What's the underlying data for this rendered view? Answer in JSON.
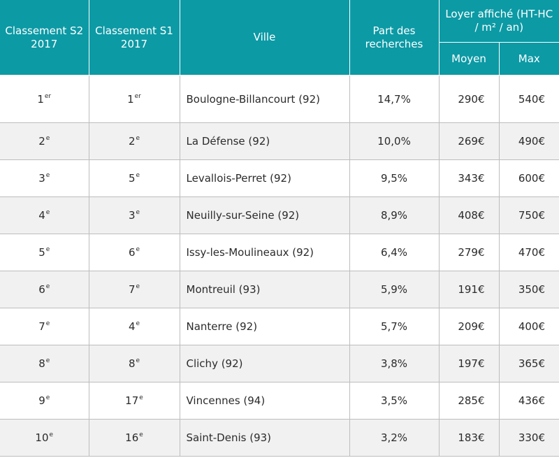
{
  "headers": {
    "classement_s2": "Classement S2 2017",
    "classement_s1": "Classement S1 2017",
    "ville": "Ville",
    "part_recherches": "Part des recherches",
    "loyer": "Loyer affiché (HT-HC / m² / an)",
    "moyen": "Moyen",
    "max": "Max"
  },
  "rows": [
    {
      "s2": "1",
      "s2_sup": "er",
      "s1": "1",
      "s1_sup": "er",
      "ville": "Boulogne-Billancourt (92)",
      "part": "14,7%",
      "moyen": "290€",
      "max": "540€"
    },
    {
      "s2": "2",
      "s2_sup": "e",
      "s1": "2",
      "s1_sup": "e",
      "ville": "La Défense (92)",
      "part": "10,0%",
      "moyen": "269€",
      "max": "490€"
    },
    {
      "s2": "3",
      "s2_sup": "e",
      "s1": "5",
      "s1_sup": "e",
      "ville": "Levallois-Perret (92)",
      "part": "9,5%",
      "moyen": "343€",
      "max": "600€"
    },
    {
      "s2": "4",
      "s2_sup": "e",
      "s1": "3",
      "s1_sup": "e",
      "ville": "Neuilly-sur-Seine (92)",
      "part": "8,9%",
      "moyen": "408€",
      "max": "750€"
    },
    {
      "s2": "5",
      "s2_sup": "e",
      "s1": "6",
      "s1_sup": "e",
      "ville": "Issy-les-Moulineaux (92)",
      "part": "6,4%",
      "moyen": "279€",
      "max": "470€"
    },
    {
      "s2": "6",
      "s2_sup": "e",
      "s1": "7",
      "s1_sup": "e",
      "ville": "Montreuil (93)",
      "part": "5,9%",
      "moyen": "191€",
      "max": "350€"
    },
    {
      "s2": "7",
      "s2_sup": "e",
      "s1": "4",
      "s1_sup": "e",
      "ville": "Nanterre (92)",
      "part": "5,7%",
      "moyen": "209€",
      "max": "400€"
    },
    {
      "s2": "8",
      "s2_sup": "e",
      "s1": "8",
      "s1_sup": "e",
      "ville": "Clichy (92)",
      "part": "3,8%",
      "moyen": "197€",
      "max": "365€"
    },
    {
      "s2": "9",
      "s2_sup": "e",
      "s1": "17",
      "s1_sup": "e",
      "ville": "Vincennes (94)",
      "part": "3,5%",
      "moyen": "285€",
      "max": "436€"
    },
    {
      "s2": "10",
      "s2_sup": "e",
      "s1": "16",
      "s1_sup": "e",
      "ville": "Saint-Denis (93)",
      "part": "3,2%",
      "moyen": "183€",
      "max": "330€"
    }
  ]
}
